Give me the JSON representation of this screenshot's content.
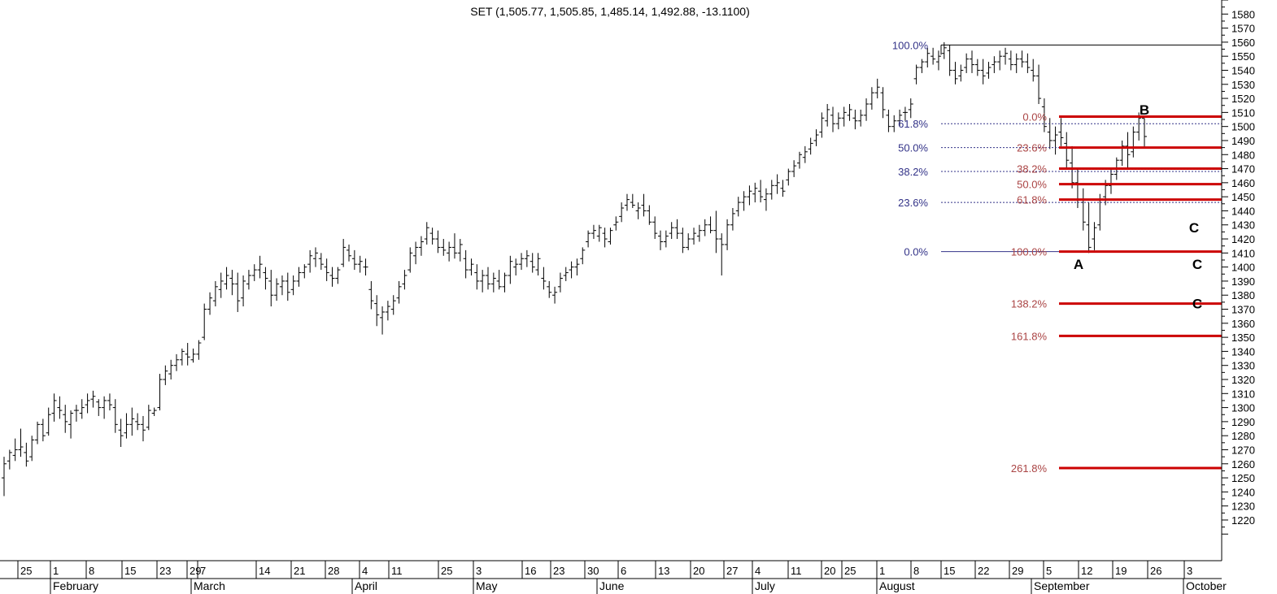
{
  "chart_data": {
    "type": "bar",
    "title": "SET (1,505.77, 1,505.85, 1,485.14, 1,492.88, -13.1100)",
    "ylim": [
      1210,
      1588
    ],
    "y_ticks": [
      1220,
      1230,
      1240,
      1250,
      1260,
      1270,
      1280,
      1290,
      1300,
      1310,
      1320,
      1330,
      1340,
      1350,
      1360,
      1370,
      1380,
      1390,
      1400,
      1410,
      1420,
      1430,
      1440,
      1450,
      1460,
      1470,
      1480,
      1490,
      1500,
      1510,
      1520,
      1530,
      1540,
      1550,
      1560,
      1570,
      1580
    ],
    "x_day_ticks": [
      "25",
      "1",
      "8",
      "15",
      "23",
      "29",
      "7",
      "14",
      "21",
      "28",
      "4",
      "11",
      "25",
      "3",
      "16",
      "23",
      "30",
      "6",
      "13",
      "20",
      "27",
      "4",
      "11",
      "20",
      "25",
      "1",
      "8",
      "15",
      "22",
      "29",
      "5",
      "12",
      "19",
      "26",
      "3"
    ],
    "x_month_labels": [
      "February",
      "March",
      "April",
      "May",
      "June",
      "July",
      "August",
      "September",
      "October"
    ],
    "ohlc": [
      [
        1250,
        1265,
        1237,
        1260
      ],
      [
        1262,
        1270,
        1256,
        1268
      ],
      [
        1266,
        1278,
        1262,
        1270
      ],
      [
        1270,
        1285,
        1265,
        1272
      ],
      [
        1268,
        1275,
        1258,
        1262
      ],
      [
        1265,
        1280,
        1262,
        1277
      ],
      [
        1277,
        1290,
        1274,
        1288
      ],
      [
        1288,
        1292,
        1276,
        1280
      ],
      [
        1282,
        1300,
        1280,
        1295
      ],
      [
        1296,
        1310,
        1290,
        1305
      ],
      [
        1300,
        1308,
        1292,
        1298
      ],
      [
        1295,
        1302,
        1282,
        1290
      ],
      [
        1288,
        1298,
        1278,
        1296
      ],
      [
        1298,
        1302,
        1290,
        1298
      ],
      [
        1296,
        1306,
        1292,
        1300
      ],
      [
        1302,
        1310,
        1296,
        1305
      ],
      [
        1306,
        1312,
        1300,
        1308
      ],
      [
        1304,
        1306,
        1294,
        1300
      ],
      [
        1300,
        1308,
        1292,
        1305
      ],
      [
        1305,
        1310,
        1298,
        1302
      ],
      [
        1300,
        1306,
        1282,
        1288
      ],
      [
        1284,
        1292,
        1272,
        1280
      ],
      [
        1282,
        1296,
        1278,
        1288
      ],
      [
        1288,
        1300,
        1280,
        1292
      ],
      [
        1290,
        1296,
        1284,
        1288
      ],
      [
        1288,
        1294,
        1276,
        1284
      ],
      [
        1286,
        1302,
        1284,
        1298
      ],
      [
        1296,
        1300,
        1294,
        1298
      ],
      [
        1300,
        1324,
        1298,
        1320
      ],
      [
        1320,
        1330,
        1316,
        1326
      ],
      [
        1324,
        1334,
        1320,
        1330
      ],
      [
        1330,
        1338,
        1326,
        1334
      ],
      [
        1334,
        1342,
        1330,
        1340
      ],
      [
        1338,
        1346,
        1330,
        1336
      ],
      [
        1334,
        1342,
        1332,
        1338
      ],
      [
        1338,
        1348,
        1334,
        1346
      ],
      [
        1350,
        1374,
        1348,
        1370
      ],
      [
        1370,
        1382,
        1366,
        1378
      ],
      [
        1376,
        1390,
        1372,
        1386
      ],
      [
        1384,
        1396,
        1378,
        1390
      ],
      [
        1388,
        1400,
        1384,
        1394
      ],
      [
        1392,
        1398,
        1380,
        1388
      ],
      [
        1388,
        1396,
        1368,
        1376
      ],
      [
        1378,
        1394,
        1372,
        1390
      ],
      [
        1388,
        1398,
        1384,
        1394
      ],
      [
        1394,
        1402,
        1390,
        1398
      ],
      [
        1398,
        1408,
        1392,
        1402
      ],
      [
        1396,
        1400,
        1384,
        1392
      ],
      [
        1390,
        1398,
        1372,
        1380
      ],
      [
        1380,
        1392,
        1376,
        1388
      ],
      [
        1386,
        1394,
        1380,
        1390
      ],
      [
        1390,
        1396,
        1376,
        1382
      ],
      [
        1384,
        1394,
        1380,
        1390
      ],
      [
        1390,
        1400,
        1386,
        1396
      ],
      [
        1396,
        1402,
        1392,
        1400
      ],
      [
        1402,
        1412,
        1396,
        1408
      ],
      [
        1406,
        1414,
        1400,
        1410
      ],
      [
        1406,
        1410,
        1398,
        1402
      ],
      [
        1400,
        1406,
        1390,
        1396
      ],
      [
        1394,
        1400,
        1386,
        1392
      ],
      [
        1392,
        1400,
        1388,
        1398
      ],
      [
        1402,
        1420,
        1400,
        1414
      ],
      [
        1412,
        1416,
        1404,
        1408
      ],
      [
        1406,
        1412,
        1398,
        1402
      ],
      [
        1402,
        1408,
        1396,
        1404
      ],
      [
        1400,
        1406,
        1394,
        1400
      ],
      [
        1384,
        1390,
        1370,
        1376
      ],
      [
        1374,
        1380,
        1358,
        1366
      ],
      [
        1364,
        1372,
        1352,
        1368
      ],
      [
        1368,
        1376,
        1362,
        1372
      ],
      [
        1370,
        1380,
        1366,
        1376
      ],
      [
        1378,
        1390,
        1374,
        1386
      ],
      [
        1388,
        1398,
        1384,
        1394
      ],
      [
        1398,
        1414,
        1396,
        1410
      ],
      [
        1408,
        1418,
        1402,
        1414
      ],
      [
        1414,
        1422,
        1408,
        1418
      ],
      [
        1420,
        1432,
        1416,
        1428
      ],
      [
        1424,
        1428,
        1416,
        1420
      ],
      [
        1420,
        1426,
        1410,
        1414
      ],
      [
        1414,
        1420,
        1408,
        1412
      ],
      [
        1410,
        1418,
        1404,
        1414
      ],
      [
        1414,
        1424,
        1406,
        1410
      ],
      [
        1410,
        1420,
        1404,
        1416
      ],
      [
        1406,
        1412,
        1392,
        1398
      ],
      [
        1398,
        1406,
        1394,
        1402
      ],
      [
        1396,
        1402,
        1384,
        1390
      ],
      [
        1390,
        1398,
        1382,
        1394
      ],
      [
        1394,
        1400,
        1384,
        1388
      ],
      [
        1388,
        1396,
        1382,
        1392
      ],
      [
        1390,
        1398,
        1384,
        1386
      ],
      [
        1386,
        1396,
        1382,
        1394
      ],
      [
        1394,
        1408,
        1388,
        1404
      ],
      [
        1400,
        1406,
        1394,
        1402
      ],
      [
        1402,
        1410,
        1398,
        1406
      ],
      [
        1406,
        1412,
        1400,
        1408
      ],
      [
        1404,
        1410,
        1396,
        1400
      ],
      [
        1398,
        1410,
        1394,
        1406
      ],
      [
        1392,
        1400,
        1384,
        1390
      ],
      [
        1386,
        1390,
        1378,
        1382
      ],
      [
        1380,
        1386,
        1374,
        1382
      ],
      [
        1386,
        1396,
        1382,
        1392
      ],
      [
        1394,
        1400,
        1390,
        1396
      ],
      [
        1398,
        1404,
        1392,
        1400
      ],
      [
        1400,
        1406,
        1394,
        1402
      ],
      [
        1406,
        1414,
        1402,
        1412
      ],
      [
        1418,
        1426,
        1414,
        1424
      ],
      [
        1424,
        1430,
        1420,
        1426
      ],
      [
        1422,
        1430,
        1418,
        1428
      ],
      [
        1424,
        1428,
        1414,
        1420
      ],
      [
        1418,
        1428,
        1416,
        1426
      ],
      [
        1430,
        1436,
        1426,
        1432
      ],
      [
        1436,
        1446,
        1432,
        1442
      ],
      [
        1444,
        1452,
        1440,
        1448
      ],
      [
        1446,
        1452,
        1442,
        1444
      ],
      [
        1440,
        1446,
        1434,
        1442
      ],
      [
        1444,
        1452,
        1436,
        1440
      ],
      [
        1440,
        1444,
        1430,
        1432
      ],
      [
        1432,
        1436,
        1420,
        1424
      ],
      [
        1422,
        1426,
        1412,
        1418
      ],
      [
        1418,
        1426,
        1414,
        1422
      ],
      [
        1424,
        1432,
        1420,
        1428
      ],
      [
        1428,
        1434,
        1420,
        1424
      ],
      [
        1424,
        1428,
        1410,
        1414
      ],
      [
        1414,
        1424,
        1412,
        1420
      ],
      [
        1420,
        1428,
        1416,
        1424
      ],
      [
        1422,
        1430,
        1418,
        1426
      ],
      [
        1426,
        1434,
        1422,
        1430
      ],
      [
        1430,
        1436,
        1424,
        1426
      ],
      [
        1426,
        1440,
        1410,
        1420
      ],
      [
        1420,
        1424,
        1394,
        1416
      ],
      [
        1416,
        1434,
        1412,
        1430
      ],
      [
        1430,
        1442,
        1426,
        1438
      ],
      [
        1440,
        1450,
        1436,
        1446
      ],
      [
        1446,
        1454,
        1440,
        1450
      ],
      [
        1450,
        1458,
        1444,
        1454
      ],
      [
        1452,
        1460,
        1446,
        1456
      ],
      [
        1454,
        1462,
        1446,
        1450
      ],
      [
        1448,
        1456,
        1440,
        1452
      ],
      [
        1452,
        1462,
        1448,
        1458
      ],
      [
        1458,
        1466,
        1452,
        1460
      ],
      [
        1456,
        1462,
        1450,
        1454
      ],
      [
        1462,
        1470,
        1458,
        1468
      ],
      [
        1468,
        1476,
        1464,
        1472
      ],
      [
        1474,
        1482,
        1470,
        1480
      ],
      [
        1478,
        1486,
        1474,
        1482
      ],
      [
        1484,
        1492,
        1480,
        1488
      ],
      [
        1490,
        1498,
        1486,
        1494
      ],
      [
        1496,
        1510,
        1492,
        1506
      ],
      [
        1504,
        1516,
        1500,
        1512
      ],
      [
        1508,
        1514,
        1496,
        1502
      ],
      [
        1502,
        1510,
        1498,
        1506
      ],
      [
        1506,
        1514,
        1500,
        1510
      ],
      [
        1508,
        1516,
        1504,
        1512
      ],
      [
        1506,
        1512,
        1498,
        1504
      ],
      [
        1504,
        1512,
        1500,
        1508
      ],
      [
        1508,
        1520,
        1504,
        1516
      ],
      [
        1516,
        1528,
        1512,
        1524
      ],
      [
        1524,
        1534,
        1520,
        1528
      ],
      [
        1524,
        1528,
        1506,
        1512
      ],
      [
        1508,
        1512,
        1496,
        1500
      ],
      [
        1500,
        1508,
        1496,
        1504
      ],
      [
        1504,
        1512,
        1500,
        1508
      ],
      [
        1510,
        1514,
        1504,
        1510
      ],
      [
        1512,
        1520,
        1506,
        1516
      ],
      [
        1534,
        1544,
        1530,
        1542
      ],
      [
        1542,
        1548,
        1538,
        1546
      ],
      [
        1546,
        1556,
        1542,
        1552
      ],
      [
        1550,
        1556,
        1544,
        1548
      ],
      [
        1546,
        1554,
        1540,
        1550
      ],
      [
        1552,
        1560,
        1548,
        1556
      ],
      [
        1554,
        1558,
        1536,
        1540
      ],
      [
        1540,
        1546,
        1530,
        1534
      ],
      [
        1536,
        1544,
        1532,
        1540
      ],
      [
        1542,
        1552,
        1538,
        1548
      ],
      [
        1548,
        1554,
        1538,
        1544
      ],
      [
        1544,
        1548,
        1536,
        1540
      ],
      [
        1540,
        1548,
        1530,
        1536
      ],
      [
        1538,
        1546,
        1534,
        1542
      ],
      [
        1544,
        1550,
        1538,
        1546
      ],
      [
        1546,
        1554,
        1540,
        1550
      ],
      [
        1550,
        1556,
        1544,
        1552
      ],
      [
        1548,
        1554,
        1540,
        1544
      ],
      [
        1544,
        1552,
        1538,
        1548
      ],
      [
        1548,
        1554,
        1542,
        1546
      ],
      [
        1546,
        1552,
        1538,
        1542
      ],
      [
        1540,
        1548,
        1532,
        1536
      ],
      [
        1536,
        1544,
        1516,
        1520
      ],
      [
        1514,
        1520,
        1496,
        1500
      ],
      [
        1496,
        1506,
        1484,
        1490
      ],
      [
        1490,
        1500,
        1480,
        1494
      ],
      [
        1496,
        1506,
        1486,
        1492
      ],
      [
        1488,
        1496,
        1470,
        1476
      ],
      [
        1474,
        1486,
        1456,
        1460
      ],
      [
        1460,
        1470,
        1442,
        1448
      ],
      [
        1446,
        1456,
        1426,
        1432
      ],
      [
        1430,
        1446,
        1410,
        1414
      ],
      [
        1420,
        1432,
        1412,
        1428
      ],
      [
        1430,
        1452,
        1426,
        1448
      ],
      [
        1450,
        1462,
        1444,
        1458
      ],
      [
        1458,
        1470,
        1452,
        1466
      ],
      [
        1466,
        1478,
        1462,
        1476
      ],
      [
        1476,
        1490,
        1472,
        1486
      ],
      [
        1486,
        1496,
        1470,
        1480
      ],
      [
        1482,
        1500,
        1478,
        1496
      ],
      [
        1496,
        1510,
        1490,
        1506
      ],
      [
        1505.77,
        1505.85,
        1485.14,
        1492.88
      ]
    ],
    "extra_line_level": 1558,
    "retracement_blue": {
      "levels": [
        {
          "label": "100.0%",
          "value": 1558
        },
        {
          "label": "61.8%",
          "value": 1502
        },
        {
          "label": "50.0%",
          "value": 1485
        },
        {
          "label": "38.2%",
          "value": 1468
        },
        {
          "label": "23.6%",
          "value": 1446
        },
        {
          "label": "0.0%",
          "value": 1411
        }
      ]
    },
    "retracement_red": {
      "levels": [
        {
          "label": "0.0%",
          "value": 1507
        },
        {
          "label": "23.6%",
          "value": 1485
        },
        {
          "label": "38.2%",
          "value": 1470
        },
        {
          "label": "50.0%",
          "value": 1459
        },
        {
          "label": "61.8%",
          "value": 1448
        },
        {
          "label": "100.0%",
          "value": 1411
        },
        {
          "label": "138.2%",
          "value": 1374
        },
        {
          "label": "161.8%",
          "value": 1351
        },
        {
          "label": "261.8%",
          "value": 1257
        }
      ]
    },
    "wave_labels": [
      {
        "text": "B",
        "value": 1512
      },
      {
        "text": "A",
        "value": 1402
      },
      {
        "text": "C",
        "value": 1428
      },
      {
        "text": "C",
        "value": 1402
      },
      {
        "text": "C",
        "value": 1374
      }
    ],
    "colors": {
      "bars": "#000000",
      "blue_fib": "#333388",
      "red_fib": "#cc0000",
      "red_label": "#aa4444",
      "axis": "#000000"
    }
  }
}
